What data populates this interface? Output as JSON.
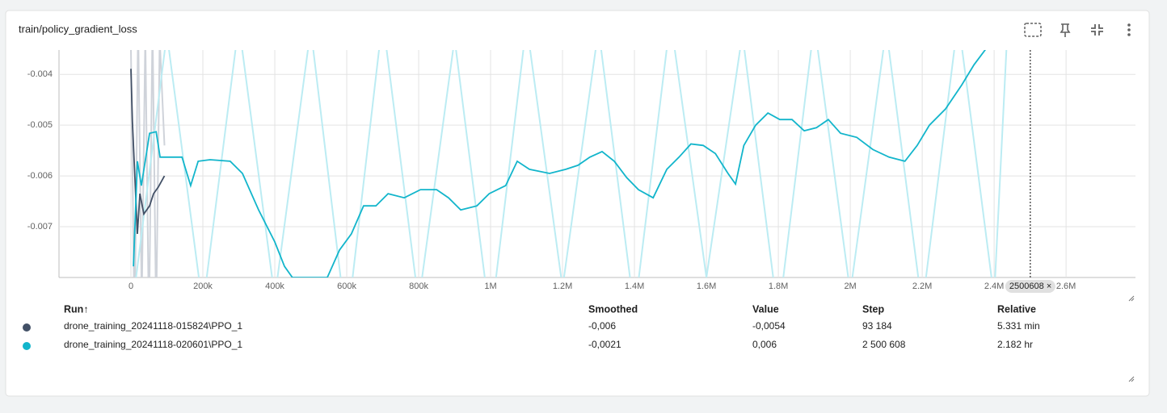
{
  "card": {
    "title": "train/policy_gradient_loss"
  },
  "chart_data": {
    "type": "line",
    "xlim": [
      -200000,
      2793000
    ],
    "ylim": [
      -0.008,
      -0.00352
    ],
    "xticks": [
      0,
      {
        "value": 200000,
        "label": "200k"
      },
      {
        "value": 400000,
        "label": "400k"
      },
      {
        "value": 600000,
        "label": "600k"
      },
      {
        "value": 800000,
        "label": "800k"
      },
      {
        "value": 1000000,
        "label": "1M"
      },
      {
        "value": 1200000,
        "label": "1.2M"
      },
      {
        "value": 1400000,
        "label": "1.4M"
      },
      {
        "value": 1600000,
        "label": "1.6M"
      },
      {
        "value": 1800000,
        "label": "1.8M"
      },
      {
        "value": 2000000,
        "label": "2M"
      },
      {
        "value": 2200000,
        "label": "2.2M"
      },
      {
        "value": 2400000,
        "label": "2.4M"
      },
      {
        "value": 2600000,
        "label": "2.6M"
      }
    ],
    "yticks": [
      -0.004,
      -0.005,
      -0.006,
      -0.007
    ],
    "grid": true,
    "cursor_step": 2500608,
    "series": [
      {
        "name": "drone_training_20241118-015824\\PPO_1",
        "color": "#425066",
        "raw_color": "#cfd3da",
        "x": [
          0,
          4000,
          11000,
          18000,
          25000,
          36000,
          52000,
          63000,
          76000,
          93184
        ],
        "values": [
          -0.00389,
          -0.00492,
          -0.00603,
          -0.00714,
          -0.00635,
          -0.00675,
          -0.00659,
          -0.00635,
          -0.00622,
          -0.006
        ],
        "raw_x": [
          0,
          10000,
          20000,
          30000,
          40000,
          50000,
          60000,
          70000,
          80000,
          93184
        ],
        "raw_values": [
          -0.0035,
          -0.009,
          -0.003,
          -0.0085,
          -0.0032,
          -0.009,
          -0.003,
          -0.0088,
          -0.0033,
          -0.0054
        ]
      },
      {
        "name": "drone_training_20241118-020601\\PPO_1",
        "color": "#12b5cb",
        "raw_color": "#bcecf3",
        "x": [
          7000,
          18000,
          29000,
          52000,
          70000,
          81000,
          108000,
          142000,
          166000,
          187000,
          220000,
          276000,
          310000,
          355000,
          400000,
          427000,
          449000,
          546000,
          580000,
          613000,
          647000,
          681000,
          715000,
          760000,
          805000,
          850000,
          883000,
          917000,
          962000,
          996000,
          1042000,
          1074000,
          1108000,
          1164000,
          1209000,
          1243000,
          1276000,
          1310000,
          1344000,
          1378000,
          1411000,
          1452000,
          1490000,
          1524000,
          1557000,
          1591000,
          1625000,
          1660000,
          1681000,
          1704000,
          1737000,
          1771000,
          1804000,
          1838000,
          1872000,
          1906000,
          1939000,
          1973000,
          2018000,
          2063000,
          2108000,
          2152000,
          2186000,
          2220000,
          2265000,
          2310000,
          2344000,
          2378000,
          2500608
        ],
        "values": [
          -0.00778,
          -0.00571,
          -0.00619,
          -0.00516,
          -0.00513,
          -0.00563,
          -0.00563,
          -0.00563,
          -0.00619,
          -0.00571,
          -0.00568,
          -0.00571,
          -0.00595,
          -0.00667,
          -0.0073,
          -0.00778,
          -0.008,
          -0.008,
          -0.00746,
          -0.00714,
          -0.00659,
          -0.00659,
          -0.00635,
          -0.00643,
          -0.00627,
          -0.00627,
          -0.00643,
          -0.00667,
          -0.00659,
          -0.00635,
          -0.00619,
          -0.00571,
          -0.00587,
          -0.00595,
          -0.00587,
          -0.00579,
          -0.00563,
          -0.00552,
          -0.00571,
          -0.00603,
          -0.00627,
          -0.00643,
          -0.00587,
          -0.00563,
          -0.00537,
          -0.0054,
          -0.00556,
          -0.00595,
          -0.00616,
          -0.0054,
          -0.005,
          -0.00476,
          -0.00489,
          -0.00489,
          -0.00511,
          -0.00505,
          -0.00489,
          -0.00516,
          -0.00524,
          -0.00548,
          -0.00563,
          -0.00571,
          -0.0054,
          -0.005,
          -0.00468,
          -0.00421,
          -0.00381,
          -0.00349,
          -0.0021
        ],
        "raw_x": [
          0,
          100000,
          200000,
          300000,
          400000,
          500000,
          600000,
          700000,
          800000,
          900000,
          1000000,
          1100000,
          1200000,
          1300000,
          1400000,
          1500000,
          1600000,
          1700000,
          1800000,
          1900000,
          2000000,
          2100000,
          2200000,
          2300000,
          2400000,
          2500608
        ],
        "raw_values": [
          -0.0088,
          -0.0032,
          -0.0086,
          -0.003,
          -0.0084,
          -0.0031,
          -0.009,
          -0.0029,
          -0.0085,
          -0.0033,
          -0.0089,
          -0.003,
          -0.0082,
          -0.0031,
          -0.0087,
          -0.0029,
          -0.008,
          -0.0032,
          -0.0088,
          -0.003,
          -0.0083,
          -0.0031,
          -0.0086,
          -0.0029,
          -0.0084,
          0.006
        ]
      }
    ]
  },
  "table": {
    "headers": [
      "Run↑",
      "Smoothed",
      "Value",
      "Step",
      "Relative"
    ],
    "rows": [
      [
        "drone_training_20241118-015824\\PPO_1",
        "-0,006",
        "-0,0054",
        "93 184",
        "5.331 min"
      ],
      [
        "drone_training_20241118-020601\\PPO_1",
        "-0,0021",
        "0,006",
        "2 500 608",
        "2.182 hr"
      ]
    ]
  }
}
